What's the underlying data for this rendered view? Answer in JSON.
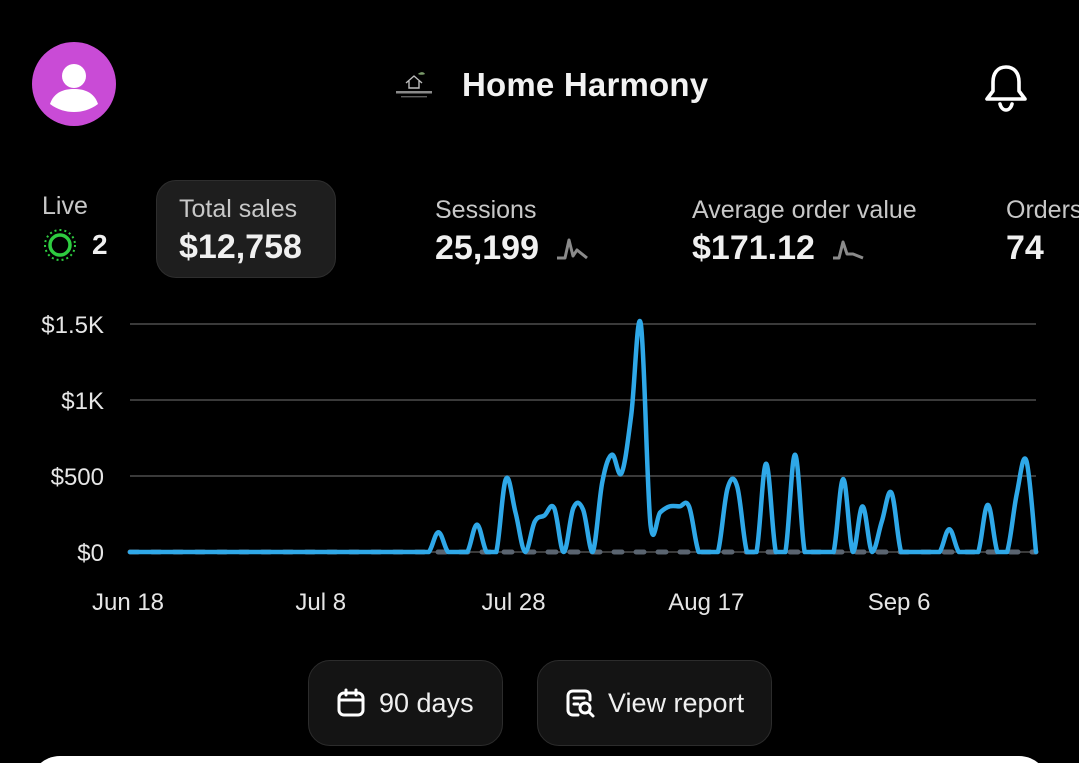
{
  "header": {
    "avatar_icon": "user-avatar-icon",
    "avatar_color": "#c94bd6",
    "brand_logo_icon": "home-logo-icon",
    "store_name": "Home Harmony",
    "bell_icon": "bell-icon"
  },
  "metrics": {
    "live": {
      "label": "Live",
      "value": "2",
      "icon": "live-pulse-icon"
    },
    "total_sales": {
      "label": "Total sales",
      "value": "$12,758"
    },
    "sessions": {
      "label": "Sessions",
      "value": "25,199",
      "icon": "sparkline-icon"
    },
    "average_order_value": {
      "label": "Average order value",
      "value": "$171.12",
      "icon": "sparkline-icon"
    },
    "orders": {
      "label": "Orders",
      "value": "74"
    }
  },
  "chart_data": {
    "type": "line",
    "title": "",
    "xlabel": "",
    "ylabel": "",
    "ylim": [
      0,
      1500
    ],
    "yticks": [
      "$1.5K",
      "$1K",
      "$500",
      "$0"
    ],
    "ytick_values": [
      1500,
      1000,
      500,
      0
    ],
    "xticks": [
      "Jun 18",
      "Jul 8",
      "Jul 28",
      "Aug 17",
      "Sep 6"
    ],
    "x_start": "Jun 18",
    "grid": true,
    "legend": "none",
    "colors": {
      "primary": "#2fa8e8",
      "comparison": "#5a6470",
      "grid": "#3a3a3a"
    },
    "series": [
      {
        "values": [
          0,
          0,
          0,
          0,
          0,
          0,
          0,
          0,
          0,
          0,
          0,
          0,
          0,
          0,
          0,
          0,
          0,
          0,
          0,
          0,
          0,
          0,
          0,
          0,
          0,
          0,
          0,
          0,
          0,
          0,
          0,
          0,
          130,
          0,
          0,
          0,
          180,
          0,
          0,
          480,
          260,
          0,
          200,
          240,
          290,
          0,
          290,
          280,
          0,
          460,
          640,
          520,
          900,
          1500,
          180,
          260,
          300,
          300,
          300,
          0,
          0,
          0,
          420,
          430,
          0,
          0,
          580,
          0,
          0,
          640,
          0,
          0,
          0,
          0,
          480,
          0,
          300,
          0,
          200,
          390,
          0,
          0,
          0,
          0,
          0,
          150,
          0,
          0,
          0,
          310,
          0,
          0,
          380,
          600,
          0
        ]
      },
      {
        "values": [
          0,
          0,
          0,
          0,
          0,
          0,
          0,
          0,
          0,
          0,
          0,
          0,
          0,
          0,
          0,
          0,
          0,
          0,
          0,
          0,
          0,
          0,
          0,
          0,
          0,
          0,
          0,
          0,
          0,
          0,
          0,
          0,
          0,
          0,
          0,
          0,
          0,
          0,
          0,
          0,
          0,
          0,
          0,
          0,
          0,
          0,
          0,
          0,
          0,
          0,
          0,
          0,
          0,
          0,
          0,
          0,
          0,
          0,
          0,
          0,
          0,
          0,
          0,
          0,
          0,
          0,
          0,
          0,
          0,
          0,
          0,
          0,
          0,
          0,
          0,
          0,
          0,
          0,
          0,
          0,
          0,
          0,
          0,
          0,
          0,
          0,
          0,
          0,
          0,
          0,
          0,
          0,
          0,
          0,
          0
        ]
      }
    ]
  },
  "buttons": {
    "days": {
      "label": "90 days",
      "icon": "calendar-icon"
    },
    "report": {
      "label": "View report",
      "icon": "report-search-icon"
    }
  }
}
